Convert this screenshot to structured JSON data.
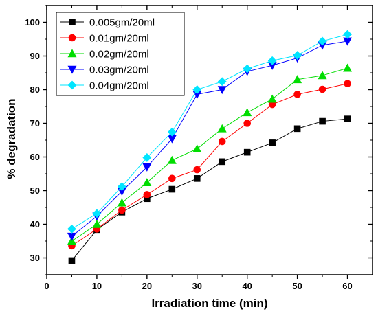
{
  "chart_data": {
    "type": "line",
    "xlabel": "Irradiation time (min)",
    "ylabel": "% degradation",
    "xlim": [
      0,
      65
    ],
    "ylim": [
      25,
      105
    ],
    "xticks": [
      0,
      10,
      20,
      30,
      40,
      50,
      60
    ],
    "yticks": [
      30,
      40,
      50,
      60,
      70,
      80,
      90,
      100
    ],
    "grid": false,
    "legend_position": "top-left",
    "x": [
      5,
      10,
      15,
      20,
      25,
      30,
      35,
      40,
      45,
      50,
      55,
      60
    ],
    "series": [
      {
        "name": "0.005gm/20ml",
        "color": "#000000",
        "marker": "square",
        "values": [
          29.2,
          38.4,
          43.6,
          47.6,
          50.4,
          53.6,
          58.6,
          61.4,
          64.2,
          68.4,
          70.6,
          71.3
        ]
      },
      {
        "name": "0.01gm/20ml",
        "color": "#ff0000",
        "marker": "circle",
        "values": [
          33.6,
          38.6,
          44.2,
          48.8,
          53.6,
          56.2,
          64.6,
          70.0,
          75.6,
          78.6,
          80.1,
          81.8
        ]
      },
      {
        "name": "0.02gm/20ml",
        "color": "#00dd00",
        "marker": "triangle-up",
        "values": [
          35.0,
          40.0,
          46.4,
          52.4,
          59.0,
          62.4,
          68.4,
          73.2,
          77.2,
          83.0,
          84.2,
          86.4
        ]
      },
      {
        "name": "0.03gm/20ml",
        "color": "#0000ff",
        "marker": "triangle-down",
        "values": [
          36.4,
          42.4,
          49.8,
          57.0,
          65.4,
          78.6,
          80.0,
          85.4,
          87.2,
          89.4,
          93.2,
          94.4
        ]
      },
      {
        "name": "0.04gm/20ml",
        "color": "#00e5ff",
        "marker": "diamond",
        "values": [
          38.6,
          43.2,
          51.2,
          59.8,
          67.4,
          80.0,
          82.4,
          86.2,
          88.6,
          90.2,
          94.4,
          96.4
        ]
      }
    ]
  }
}
